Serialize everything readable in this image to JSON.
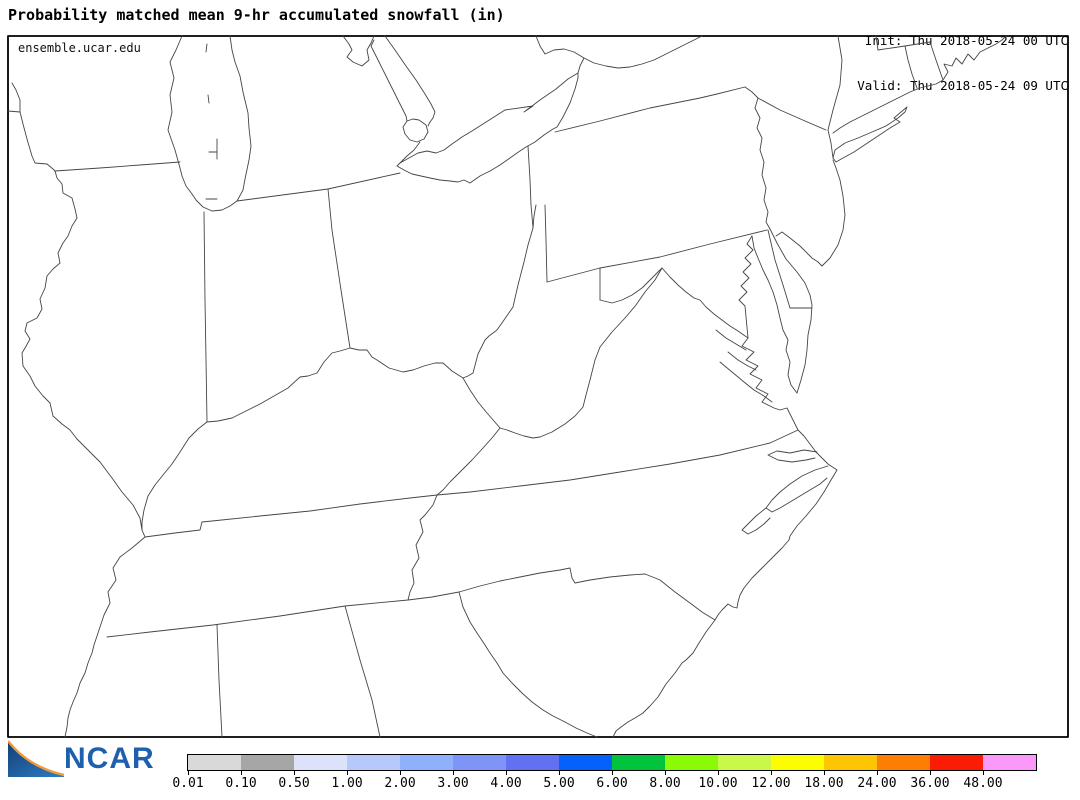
{
  "header": {
    "title": "Probability matched mean 9-hr accumulated snowfall (in)",
    "init_line": "Init: Thu 2018-05-24 00 UTC",
    "valid_line": "Valid: Thu 2018-05-24 09 UTC"
  },
  "map": {
    "region": "Eastern United States state outlines (Great Lakes to South Carolina)",
    "fill_note": "no snowfall shading shown"
  },
  "colorbar": {
    "units": "in",
    "labels": [
      "0.01",
      "0.10",
      "0.50",
      "1.00",
      "2.00",
      "3.00",
      "4.00",
      "5.00",
      "6.00",
      "8.00",
      "10.00",
      "12.00",
      "18.00",
      "24.00",
      "36.00",
      "48.00"
    ],
    "colors": [
      "#d9d9d9",
      "#a6a6a6",
      "#dbe2fa",
      "#b7c8fa",
      "#8fb0fa",
      "#7e94f7",
      "#6270f2",
      "#0561fc",
      "#00c43d",
      "#8bfa06",
      "#c9f84b",
      "#fdfd02",
      "#fec502",
      "#fe7e03",
      "#fb1c06",
      "#fb99fa"
    ]
  },
  "footer": {
    "logo_text": "NCAR",
    "site": "ensemble.ucar.edu",
    "logo_blue": "#1a4f8e",
    "logo_orange": "#f09a3c"
  }
}
